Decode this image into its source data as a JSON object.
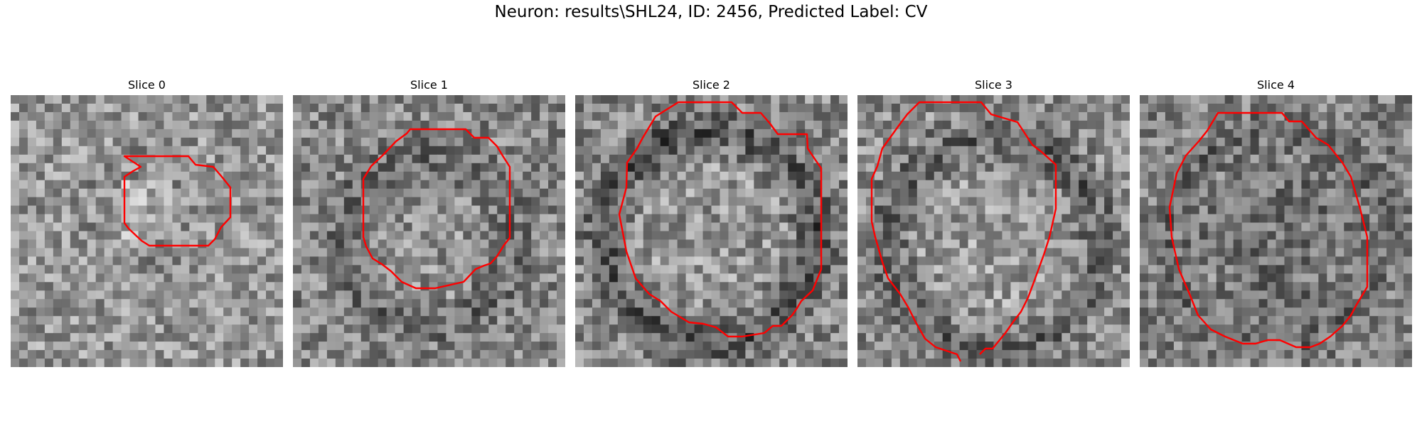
{
  "figure": {
    "title": "Neuron: results\\SHL24, ID: 2456, Predicted Label: CV"
  },
  "panels": [
    {
      "title": "Slice 0"
    },
    {
      "title": "Slice 1"
    },
    {
      "title": "Slice 2"
    },
    {
      "title": "Slice 3"
    },
    {
      "title": "Slice 4"
    }
  ],
  "colors": {
    "contour": "#ff0000",
    "background": "#ffffff"
  }
}
